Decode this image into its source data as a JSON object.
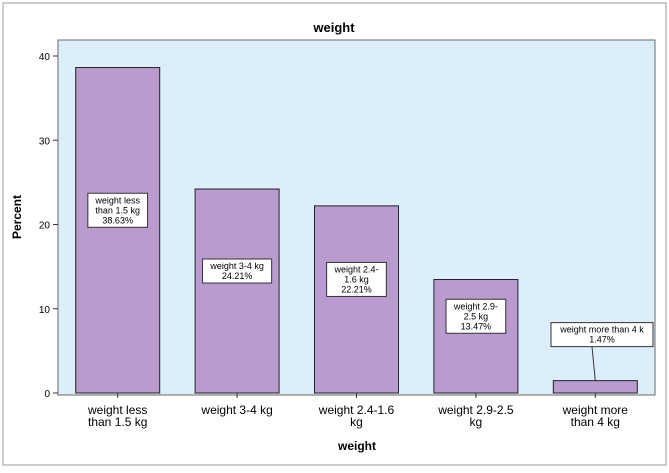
{
  "chart_data": {
    "type": "bar",
    "title": "weight",
    "xlabel": "weight",
    "ylabel": "Percent",
    "ylim": [
      0,
      40
    ],
    "yticks": [
      0,
      10,
      20,
      30,
      40
    ],
    "grid": false,
    "legend": "none",
    "categories": [
      [
        "weight less",
        "than 1.5 kg"
      ],
      [
        "weight 3-4 kg"
      ],
      [
        "weight 2.4-1.6",
        "kg"
      ],
      [
        "weight 2.9-2.5",
        "kg"
      ],
      [
        "weight more",
        "than 4 kg"
      ]
    ],
    "values": [
      38.63,
      24.21,
      22.21,
      13.47,
      1.47
    ],
    "data_labels": [
      [
        "weight less",
        "than 1.5 kg",
        "38.63%"
      ],
      [
        "weight 3-4 kg",
        "24.21%"
      ],
      [
        "weight 2.4-",
        "1.6 kg",
        "22.21%"
      ],
      [
        "weight 2.9-",
        "2.5 kg",
        "13.47%"
      ],
      [
        "weight more than 4 k",
        "1.47%"
      ]
    ],
    "colors": {
      "bar_fill": "#B99BCF",
      "bar_stroke": "#222222",
      "plot_background": "#DCEEFA",
      "frame_background": "#FFFFFF",
      "label_box": "#FFFFFF"
    }
  }
}
